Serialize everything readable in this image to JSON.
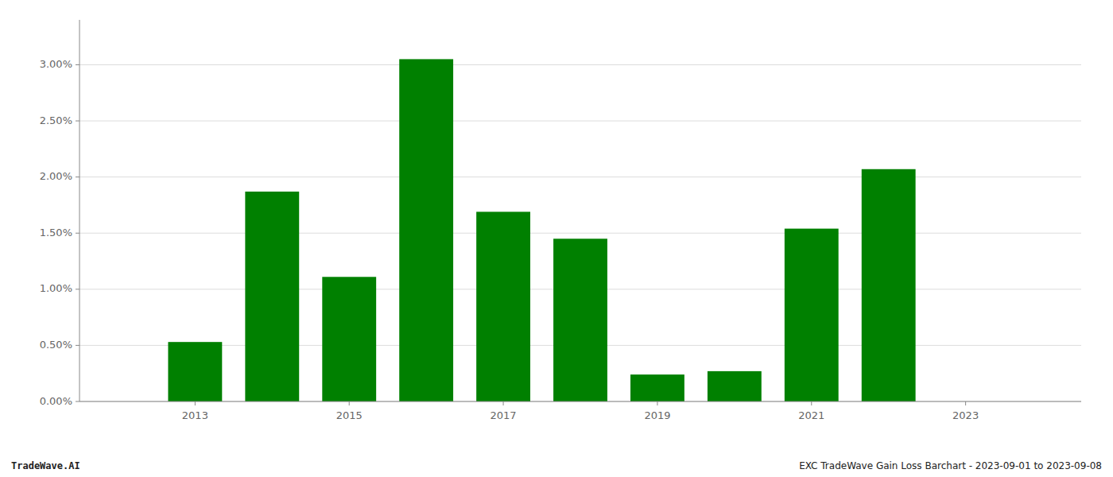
{
  "chart_data": {
    "type": "bar",
    "x": [
      2013,
      2014,
      2015,
      2016,
      2017,
      2018,
      2019,
      2020,
      2021,
      2022,
      2023
    ],
    "values": [
      0.0053,
      0.0187,
      0.0111,
      0.0305,
      0.0169,
      0.0145,
      0.0024,
      0.0027,
      0.0154,
      0.0207,
      0.0
    ],
    "color": "#008000",
    "xlim": [
      2011.5,
      2024.5
    ],
    "xticks": [
      2013,
      2015,
      2017,
      2019,
      2021,
      2023
    ],
    "ylim": [
      0,
      0.034
    ],
    "yticks": [
      {
        "value": 0.0,
        "label": "0.00%"
      },
      {
        "value": 0.005,
        "label": "0.50%"
      },
      {
        "value": 0.01,
        "label": "1.00%"
      },
      {
        "value": 0.015,
        "label": "1.50%"
      },
      {
        "value": 0.02,
        "label": "2.00%"
      },
      {
        "value": 0.025,
        "label": "2.50%"
      },
      {
        "value": 0.03,
        "label": "3.00%"
      }
    ],
    "grid": true,
    "annotations": [
      "TradeWave.AI",
      "EXC TradeWave Gain Loss Barchart - 2023-09-01 to 2023-09-08"
    ]
  }
}
